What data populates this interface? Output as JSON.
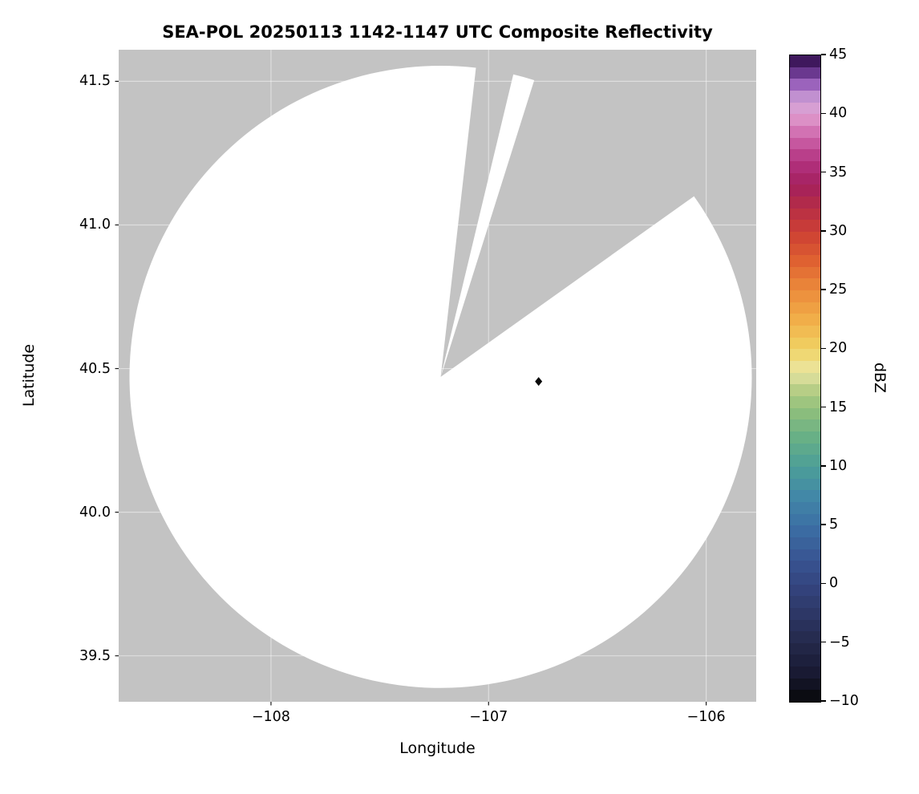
{
  "chart_data": {
    "type": "heatmap",
    "description": "Radar composite reflectivity map: gray figure background with white circular radar coverage area, two gray blocked azimuth sectors, and a black diamond site marker. No echoes above color scale minimum are visible (coverage area is blank/white).",
    "title": "SEA-POL 20250113 1142-1147 UTC Composite Reflectivity",
    "xlabel": "Longitude",
    "ylabel": "Latitude",
    "xlim": [
      -108.7,
      -105.77
    ],
    "ylim": [
      39.34,
      41.61
    ],
    "xticks": [
      -108,
      -107,
      -106
    ],
    "xtick_labels": [
      "−108",
      "−107",
      "−106"
    ],
    "yticks": [
      41.5,
      41.0,
      40.5,
      40.0,
      39.5
    ],
    "ytick_labels": [
      "41.5",
      "41.0",
      "40.5",
      "40.0",
      "39.5"
    ],
    "grid": true,
    "radar_coverage": {
      "center_lon": -107.22,
      "center_lat": 40.471,
      "radius_lon_deg": 1.43,
      "radius_lat_deg": 1.083,
      "blocked_sectors_azimuth_deg": [
        [
          6.5,
          13.5
        ],
        [
          17.5,
          54.5
        ]
      ],
      "coverage_color": "#ffffff",
      "background_color": "#c3c3c3"
    },
    "site_marker": {
      "lon": -106.77,
      "lat": 40.455,
      "symbol": "diamond",
      "color": "#0a0a0a"
    },
    "colorbar": {
      "label": "dBZ",
      "min": -10,
      "max": 45,
      "ticks": [
        45,
        40,
        35,
        30,
        25,
        20,
        15,
        10,
        5,
        0,
        -5,
        -10
      ],
      "tick_labels": [
        "45",
        "40",
        "35",
        "30",
        "25",
        "20",
        "15",
        "10",
        "5",
        "0",
        "−5",
        "−10"
      ],
      "levels": 55,
      "gradient_stops": [
        [
          -10,
          "#08080a"
        ],
        [
          -7.5,
          "#191a33"
        ],
        [
          -5,
          "#24294b"
        ],
        [
          -2.5,
          "#2d3766"
        ],
        [
          0,
          "#344580"
        ],
        [
          2.5,
          "#395895"
        ],
        [
          5,
          "#3c70a5"
        ],
        [
          7.5,
          "#4288a7"
        ],
        [
          10,
          "#4c9e98"
        ],
        [
          12.5,
          "#68b086"
        ],
        [
          15,
          "#92c07b"
        ],
        [
          17,
          "#c3d289"
        ],
        [
          18,
          "#e9e6a6"
        ],
        [
          19,
          "#eedd84"
        ],
        [
          20,
          "#f0d263"
        ],
        [
          22.5,
          "#f1ae49"
        ],
        [
          25,
          "#ec8b3b"
        ],
        [
          27.5,
          "#df6131"
        ],
        [
          30,
          "#cc3f34"
        ],
        [
          32.5,
          "#b12a4b"
        ],
        [
          34,
          "#a4205f"
        ],
        [
          36,
          "#b23380"
        ],
        [
          38,
          "#cd63a9"
        ],
        [
          39.5,
          "#dc90c6"
        ],
        [
          41,
          "#d4a6da"
        ],
        [
          42.5,
          "#9b63bc"
        ],
        [
          44,
          "#522278"
        ],
        [
          45,
          "#2c0e42"
        ]
      ]
    }
  },
  "colors": {
    "figure_bg": "#ffffff",
    "axes_bg": "#c3c3c3",
    "grid": "rgba(255,255,255,0.45)",
    "tick": "#1a1a1a",
    "text": "#000000"
  }
}
